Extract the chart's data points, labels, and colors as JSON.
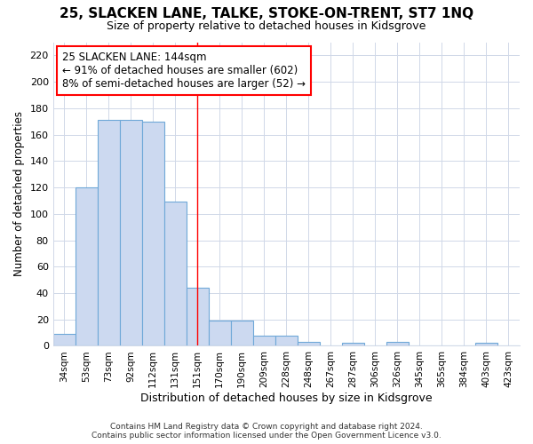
{
  "title": "25, SLACKEN LANE, TALKE, STOKE-ON-TRENT, ST7 1NQ",
  "subtitle": "Size of property relative to detached houses in Kidsgrove",
  "xlabel": "Distribution of detached houses by size in Kidsgrove",
  "ylabel": "Number of detached properties",
  "bar_labels": [
    "34sqm",
    "53sqm",
    "73sqm",
    "92sqm",
    "112sqm",
    "131sqm",
    "151sqm",
    "170sqm",
    "190sqm",
    "209sqm",
    "228sqm",
    "248sqm",
    "267sqm",
    "287sqm",
    "306sqm",
    "326sqm",
    "345sqm",
    "365sqm",
    "384sqm",
    "403sqm",
    "423sqm"
  ],
  "bar_values": [
    9,
    120,
    171,
    171,
    170,
    109,
    44,
    19,
    19,
    8,
    8,
    3,
    0,
    2,
    0,
    3,
    0,
    0,
    0,
    2,
    0
  ],
  "bar_color": "#ccd9f0",
  "bar_edge_color": "#6fa8d8",
  "ylim": [
    0,
    230
  ],
  "yticks": [
    0,
    20,
    40,
    60,
    80,
    100,
    120,
    140,
    160,
    180,
    200,
    220
  ],
  "annotation_text": "25 SLACKEN LANE: 144sqm\n← 91% of detached houses are smaller (602)\n8% of semi-detached houses are larger (52) →",
  "vline_x_index": 6.0,
  "footer": "Contains HM Land Registry data © Crown copyright and database right 2024.\nContains public sector information licensed under the Open Government Licence v3.0.",
  "bg_color": "#ffffff",
  "grid_color": "#d0d8e8",
  "title_fontsize": 11,
  "subtitle_fontsize": 9
}
